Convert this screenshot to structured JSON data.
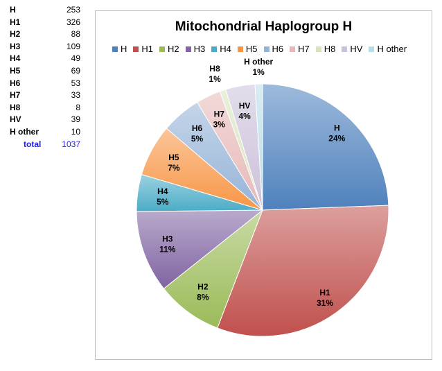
{
  "table": {
    "rows": [
      {
        "label": "H",
        "value": 253
      },
      {
        "label": "H1",
        "value": 326
      },
      {
        "label": "H2",
        "value": 88
      },
      {
        "label": "H3",
        "value": 109
      },
      {
        "label": "H4",
        "value": 49
      },
      {
        "label": "H5",
        "value": 69
      },
      {
        "label": "H6",
        "value": 53
      },
      {
        "label": "H7",
        "value": 33
      },
      {
        "label": "H8",
        "value": 8
      },
      {
        "label": "HV",
        "value": 39
      },
      {
        "label": "H other",
        "value": 10
      }
    ],
    "total_label": "total",
    "total_value": 1037
  },
  "chart_data": {
    "type": "pie",
    "title": "Mitochondrial Haplogroup H",
    "legend_position": "top",
    "categories": [
      "H",
      "H1",
      "H2",
      "H3",
      "H4",
      "H5",
      "H6",
      "H7",
      "H8",
      "HV",
      "H other"
    ],
    "values": [
      253,
      326,
      88,
      109,
      49,
      69,
      53,
      33,
      8,
      39,
      10
    ],
    "percent_labels": [
      "24%",
      "31%",
      "8%",
      "11%",
      "5%",
      "7%",
      "5%",
      "3%",
      "1%",
      "4%",
      "1%"
    ],
    "colors": [
      "#4f81bd",
      "#c0504d",
      "#9bbb59",
      "#8064a2",
      "#4bacc6",
      "#f79646",
      "#95b3d7",
      "#e6b9b8",
      "#d7e4bd",
      "#ccc1da",
      "#b7dee8"
    ]
  }
}
